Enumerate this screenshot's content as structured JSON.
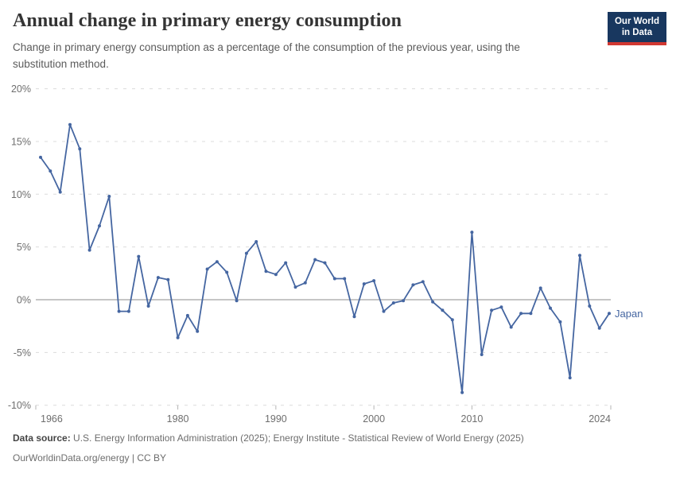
{
  "header": {
    "title": "Annual change in primary energy consumption",
    "subtitle_line1": "Change in primary energy consumption as a percentage of the consumption of the previous year, using the",
    "subtitle_line2": "substitution method.",
    "logo": {
      "line1": "Our World",
      "line2": "in Data",
      "bg_color": "#18375f",
      "accent_color": "#d13832"
    }
  },
  "chart_data": {
    "type": "line",
    "title": "Annual change in primary energy consumption",
    "entity": "Japan",
    "entity_label": "Japan",
    "unit": "%",
    "xlabel": "",
    "ylabel": "",
    "xlim": [
      1966,
      2024
    ],
    "ylim": [
      -10,
      20
    ],
    "grid": "horizontal-dashed",
    "legend": "inline-end-label",
    "line_color": "#4566a1",
    "axis_label_color": "#6e6e6e",
    "gridline_color": "#dcdcdc",
    "zero_line_color": "#a3a3a3",
    "tick_color": "#b5b5b5",
    "yticks": [
      20,
      15,
      10,
      5,
      0,
      -5,
      -10
    ],
    "ytick_labels": [
      "20%",
      "15%",
      "10%",
      "5%",
      "0%",
      "-5%",
      "-10%"
    ],
    "xticks": [
      1966,
      1980,
      1990,
      2000,
      2010,
      2024
    ],
    "xtick_labels": [
      "1966",
      "1980",
      "1990",
      "2000",
      "2010",
      "2024"
    ],
    "x": [
      1966,
      1967,
      1968,
      1969,
      1970,
      1971,
      1972,
      1973,
      1974,
      1975,
      1976,
      1977,
      1978,
      1979,
      1980,
      1981,
      1982,
      1983,
      1984,
      1985,
      1986,
      1987,
      1988,
      1989,
      1990,
      1991,
      1992,
      1993,
      1994,
      1995,
      1996,
      1997,
      1998,
      1999,
      2000,
      2001,
      2002,
      2003,
      2004,
      2005,
      2006,
      2007,
      2008,
      2009,
      2010,
      2011,
      2012,
      2013,
      2014,
      2015,
      2016,
      2017,
      2018,
      2019,
      2020,
      2021,
      2022,
      2023,
      2024
    ],
    "values": [
      13.5,
      12.2,
      10.2,
      16.6,
      14.3,
      4.7,
      7.0,
      9.8,
      -1.1,
      -1.1,
      4.1,
      -0.6,
      2.1,
      1.9,
      -3.6,
      -1.5,
      -3.0,
      2.9,
      3.6,
      2.6,
      -0.1,
      4.4,
      5.5,
      2.7,
      2.4,
      3.5,
      1.2,
      1.6,
      3.8,
      3.5,
      2.0,
      2.0,
      -1.6,
      1.5,
      1.8,
      -1.1,
      -0.3,
      -0.1,
      1.4,
      1.7,
      -0.2,
      -1.0,
      -1.9,
      -8.8,
      6.4,
      -5.2,
      -1.0,
      -0.7,
      -2.6,
      -1.3,
      -1.3,
      1.1,
      -0.8,
      -2.1,
      -7.4,
      4.2,
      -0.6,
      -2.7,
      -1.3
    ]
  },
  "footer": {
    "source_label": "Data source:",
    "source_text": "U.S. Energy Information Administration (2025); Energy Institute - Statistical Review of World Energy (2025)",
    "url": "OurWorldinData.org/energy",
    "separator": " | ",
    "license": "CC BY"
  }
}
